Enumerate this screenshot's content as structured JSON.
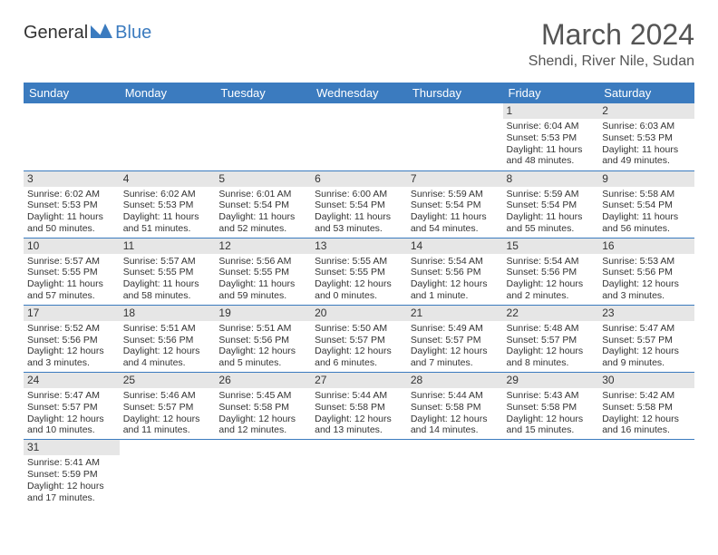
{
  "logo": {
    "text1": "General",
    "text2": "Blue",
    "mark_color": "#3b7bbf"
  },
  "title": "March 2024",
  "location": "Shendi, River Nile, Sudan",
  "colors": {
    "header_bg": "#3b7bbf",
    "header_text": "#ffffff",
    "daynum_bg": "#e6e6e6",
    "row_divider": "#3b7bbf"
  },
  "weekdays": [
    "Sunday",
    "Monday",
    "Tuesday",
    "Wednesday",
    "Thursday",
    "Friday",
    "Saturday"
  ],
  "weeks": [
    [
      null,
      null,
      null,
      null,
      null,
      {
        "n": "1",
        "sr": "Sunrise: 6:04 AM",
        "ss": "Sunset: 5:53 PM",
        "dl": "Daylight: 11 hours and 48 minutes."
      },
      {
        "n": "2",
        "sr": "Sunrise: 6:03 AM",
        "ss": "Sunset: 5:53 PM",
        "dl": "Daylight: 11 hours and 49 minutes."
      }
    ],
    [
      {
        "n": "3",
        "sr": "Sunrise: 6:02 AM",
        "ss": "Sunset: 5:53 PM",
        "dl": "Daylight: 11 hours and 50 minutes."
      },
      {
        "n": "4",
        "sr": "Sunrise: 6:02 AM",
        "ss": "Sunset: 5:53 PM",
        "dl": "Daylight: 11 hours and 51 minutes."
      },
      {
        "n": "5",
        "sr": "Sunrise: 6:01 AM",
        "ss": "Sunset: 5:54 PM",
        "dl": "Daylight: 11 hours and 52 minutes."
      },
      {
        "n": "6",
        "sr": "Sunrise: 6:00 AM",
        "ss": "Sunset: 5:54 PM",
        "dl": "Daylight: 11 hours and 53 minutes."
      },
      {
        "n": "7",
        "sr": "Sunrise: 5:59 AM",
        "ss": "Sunset: 5:54 PM",
        "dl": "Daylight: 11 hours and 54 minutes."
      },
      {
        "n": "8",
        "sr": "Sunrise: 5:59 AM",
        "ss": "Sunset: 5:54 PM",
        "dl": "Daylight: 11 hours and 55 minutes."
      },
      {
        "n": "9",
        "sr": "Sunrise: 5:58 AM",
        "ss": "Sunset: 5:54 PM",
        "dl": "Daylight: 11 hours and 56 minutes."
      }
    ],
    [
      {
        "n": "10",
        "sr": "Sunrise: 5:57 AM",
        "ss": "Sunset: 5:55 PM",
        "dl": "Daylight: 11 hours and 57 minutes."
      },
      {
        "n": "11",
        "sr": "Sunrise: 5:57 AM",
        "ss": "Sunset: 5:55 PM",
        "dl": "Daylight: 11 hours and 58 minutes."
      },
      {
        "n": "12",
        "sr": "Sunrise: 5:56 AM",
        "ss": "Sunset: 5:55 PM",
        "dl": "Daylight: 11 hours and 59 minutes."
      },
      {
        "n": "13",
        "sr": "Sunrise: 5:55 AM",
        "ss": "Sunset: 5:55 PM",
        "dl": "Daylight: 12 hours and 0 minutes."
      },
      {
        "n": "14",
        "sr": "Sunrise: 5:54 AM",
        "ss": "Sunset: 5:56 PM",
        "dl": "Daylight: 12 hours and 1 minute."
      },
      {
        "n": "15",
        "sr": "Sunrise: 5:54 AM",
        "ss": "Sunset: 5:56 PM",
        "dl": "Daylight: 12 hours and 2 minutes."
      },
      {
        "n": "16",
        "sr": "Sunrise: 5:53 AM",
        "ss": "Sunset: 5:56 PM",
        "dl": "Daylight: 12 hours and 3 minutes."
      }
    ],
    [
      {
        "n": "17",
        "sr": "Sunrise: 5:52 AM",
        "ss": "Sunset: 5:56 PM",
        "dl": "Daylight: 12 hours and 3 minutes."
      },
      {
        "n": "18",
        "sr": "Sunrise: 5:51 AM",
        "ss": "Sunset: 5:56 PM",
        "dl": "Daylight: 12 hours and 4 minutes."
      },
      {
        "n": "19",
        "sr": "Sunrise: 5:51 AM",
        "ss": "Sunset: 5:56 PM",
        "dl": "Daylight: 12 hours and 5 minutes."
      },
      {
        "n": "20",
        "sr": "Sunrise: 5:50 AM",
        "ss": "Sunset: 5:57 PM",
        "dl": "Daylight: 12 hours and 6 minutes."
      },
      {
        "n": "21",
        "sr": "Sunrise: 5:49 AM",
        "ss": "Sunset: 5:57 PM",
        "dl": "Daylight: 12 hours and 7 minutes."
      },
      {
        "n": "22",
        "sr": "Sunrise: 5:48 AM",
        "ss": "Sunset: 5:57 PM",
        "dl": "Daylight: 12 hours and 8 minutes."
      },
      {
        "n": "23",
        "sr": "Sunrise: 5:47 AM",
        "ss": "Sunset: 5:57 PM",
        "dl": "Daylight: 12 hours and 9 minutes."
      }
    ],
    [
      {
        "n": "24",
        "sr": "Sunrise: 5:47 AM",
        "ss": "Sunset: 5:57 PM",
        "dl": "Daylight: 12 hours and 10 minutes."
      },
      {
        "n": "25",
        "sr": "Sunrise: 5:46 AM",
        "ss": "Sunset: 5:57 PM",
        "dl": "Daylight: 12 hours and 11 minutes."
      },
      {
        "n": "26",
        "sr": "Sunrise: 5:45 AM",
        "ss": "Sunset: 5:58 PM",
        "dl": "Daylight: 12 hours and 12 minutes."
      },
      {
        "n": "27",
        "sr": "Sunrise: 5:44 AM",
        "ss": "Sunset: 5:58 PM",
        "dl": "Daylight: 12 hours and 13 minutes."
      },
      {
        "n": "28",
        "sr": "Sunrise: 5:44 AM",
        "ss": "Sunset: 5:58 PM",
        "dl": "Daylight: 12 hours and 14 minutes."
      },
      {
        "n": "29",
        "sr": "Sunrise: 5:43 AM",
        "ss": "Sunset: 5:58 PM",
        "dl": "Daylight: 12 hours and 15 minutes."
      },
      {
        "n": "30",
        "sr": "Sunrise: 5:42 AM",
        "ss": "Sunset: 5:58 PM",
        "dl": "Daylight: 12 hours and 16 minutes."
      }
    ],
    [
      {
        "n": "31",
        "sr": "Sunrise: 5:41 AM",
        "ss": "Sunset: 5:59 PM",
        "dl": "Daylight: 12 hours and 17 minutes."
      },
      null,
      null,
      null,
      null,
      null,
      null
    ]
  ]
}
